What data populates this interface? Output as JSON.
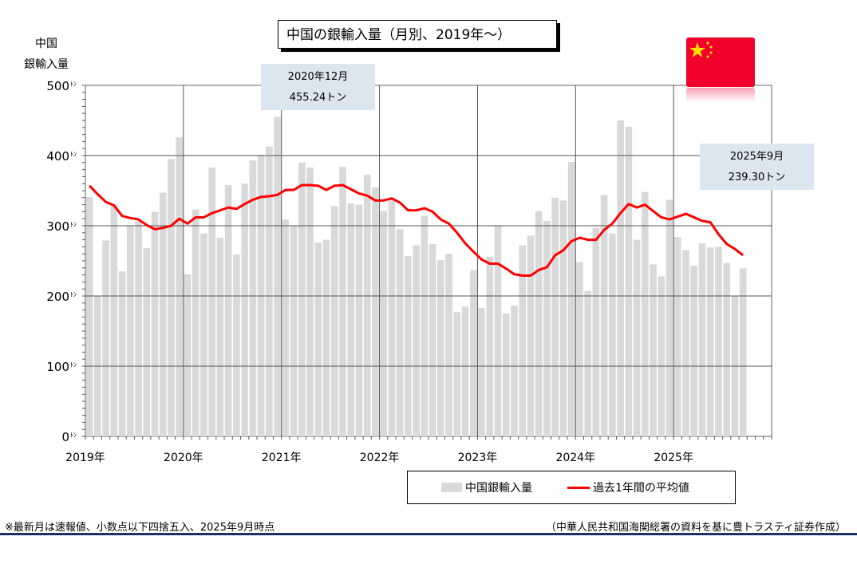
{
  "chart_data": {
    "type": "bar",
    "title": "中国の銀輸入量（月別、2019年～）",
    "ylabel": "中国\n銀輸入量",
    "ylim": [
      0,
      500
    ],
    "yticks": [
      "0",
      "100",
      "200",
      "300",
      "400",
      "500"
    ],
    "yunit": "ﾄﾝ",
    "xticks": [
      "2019年",
      "2020年",
      "2021年",
      "2022年",
      "2023年",
      "2024年",
      "2025年"
    ],
    "grid": true,
    "legend_position": "bottom-right",
    "series": [
      {
        "name": "中国銀輸入量",
        "type": "bar",
        "color": "#d9d9d9",
        "values": [
          341,
          200,
          279,
          328,
          235,
          300,
          307,
          268,
          320,
          347,
          395,
          426,
          231,
          323,
          289,
          383,
          283,
          358,
          259,
          360,
          393,
          401,
          413,
          455.24,
          309,
          300,
          390,
          383,
          276,
          280,
          328,
          384,
          332,
          330,
          373,
          355,
          321,
          336,
          295,
          257,
          272,
          314,
          274,
          251,
          260,
          177,
          185,
          237,
          183,
          256,
          300,
          175,
          186,
          272,
          286,
          321,
          307,
          340,
          336,
          391,
          248,
          207,
          297,
          344,
          289,
          450,
          441,
          280,
          348,
          245,
          228,
          337,
          284,
          265,
          243,
          275,
          269,
          270,
          247,
          200,
          239.3
        ]
      },
      {
        "name": "過去1年間の平均値",
        "type": "line",
        "color": "#ff0000",
        "values": [
          357,
          345,
          334,
          329,
          314,
          311,
          309,
          301,
          295,
          297,
          300,
          310,
          303,
          312,
          312,
          318,
          322,
          326,
          324,
          331,
          337,
          341,
          342,
          344,
          351,
          351,
          358,
          358,
          357,
          351,
          357,
          358,
          352,
          346,
          343,
          336,
          336,
          339,
          333,
          322,
          322,
          325,
          320,
          309,
          303,
          290,
          275,
          263,
          252,
          246,
          246,
          239,
          231,
          229,
          229,
          237,
          241,
          258,
          265,
          278,
          283,
          280,
          280,
          294,
          303,
          318,
          331,
          326,
          330,
          321,
          312,
          309,
          313,
          317,
          312,
          307,
          305,
          288,
          274,
          267,
          258
        ]
      }
    ],
    "annotations": [
      {
        "line1": "2020年12月",
        "line2": "455.24トン"
      },
      {
        "line1": "2025年9月",
        "line2": "239.30トン"
      }
    ]
  },
  "footnote_left": "※最新月は速報値、小数点以下四捨五入、2025年9月時点",
  "footnote_right": "（中華人民共和国海関総署の資料を基に豊トラスティ証券作成）",
  "flag_icon": "china-flag-icon"
}
